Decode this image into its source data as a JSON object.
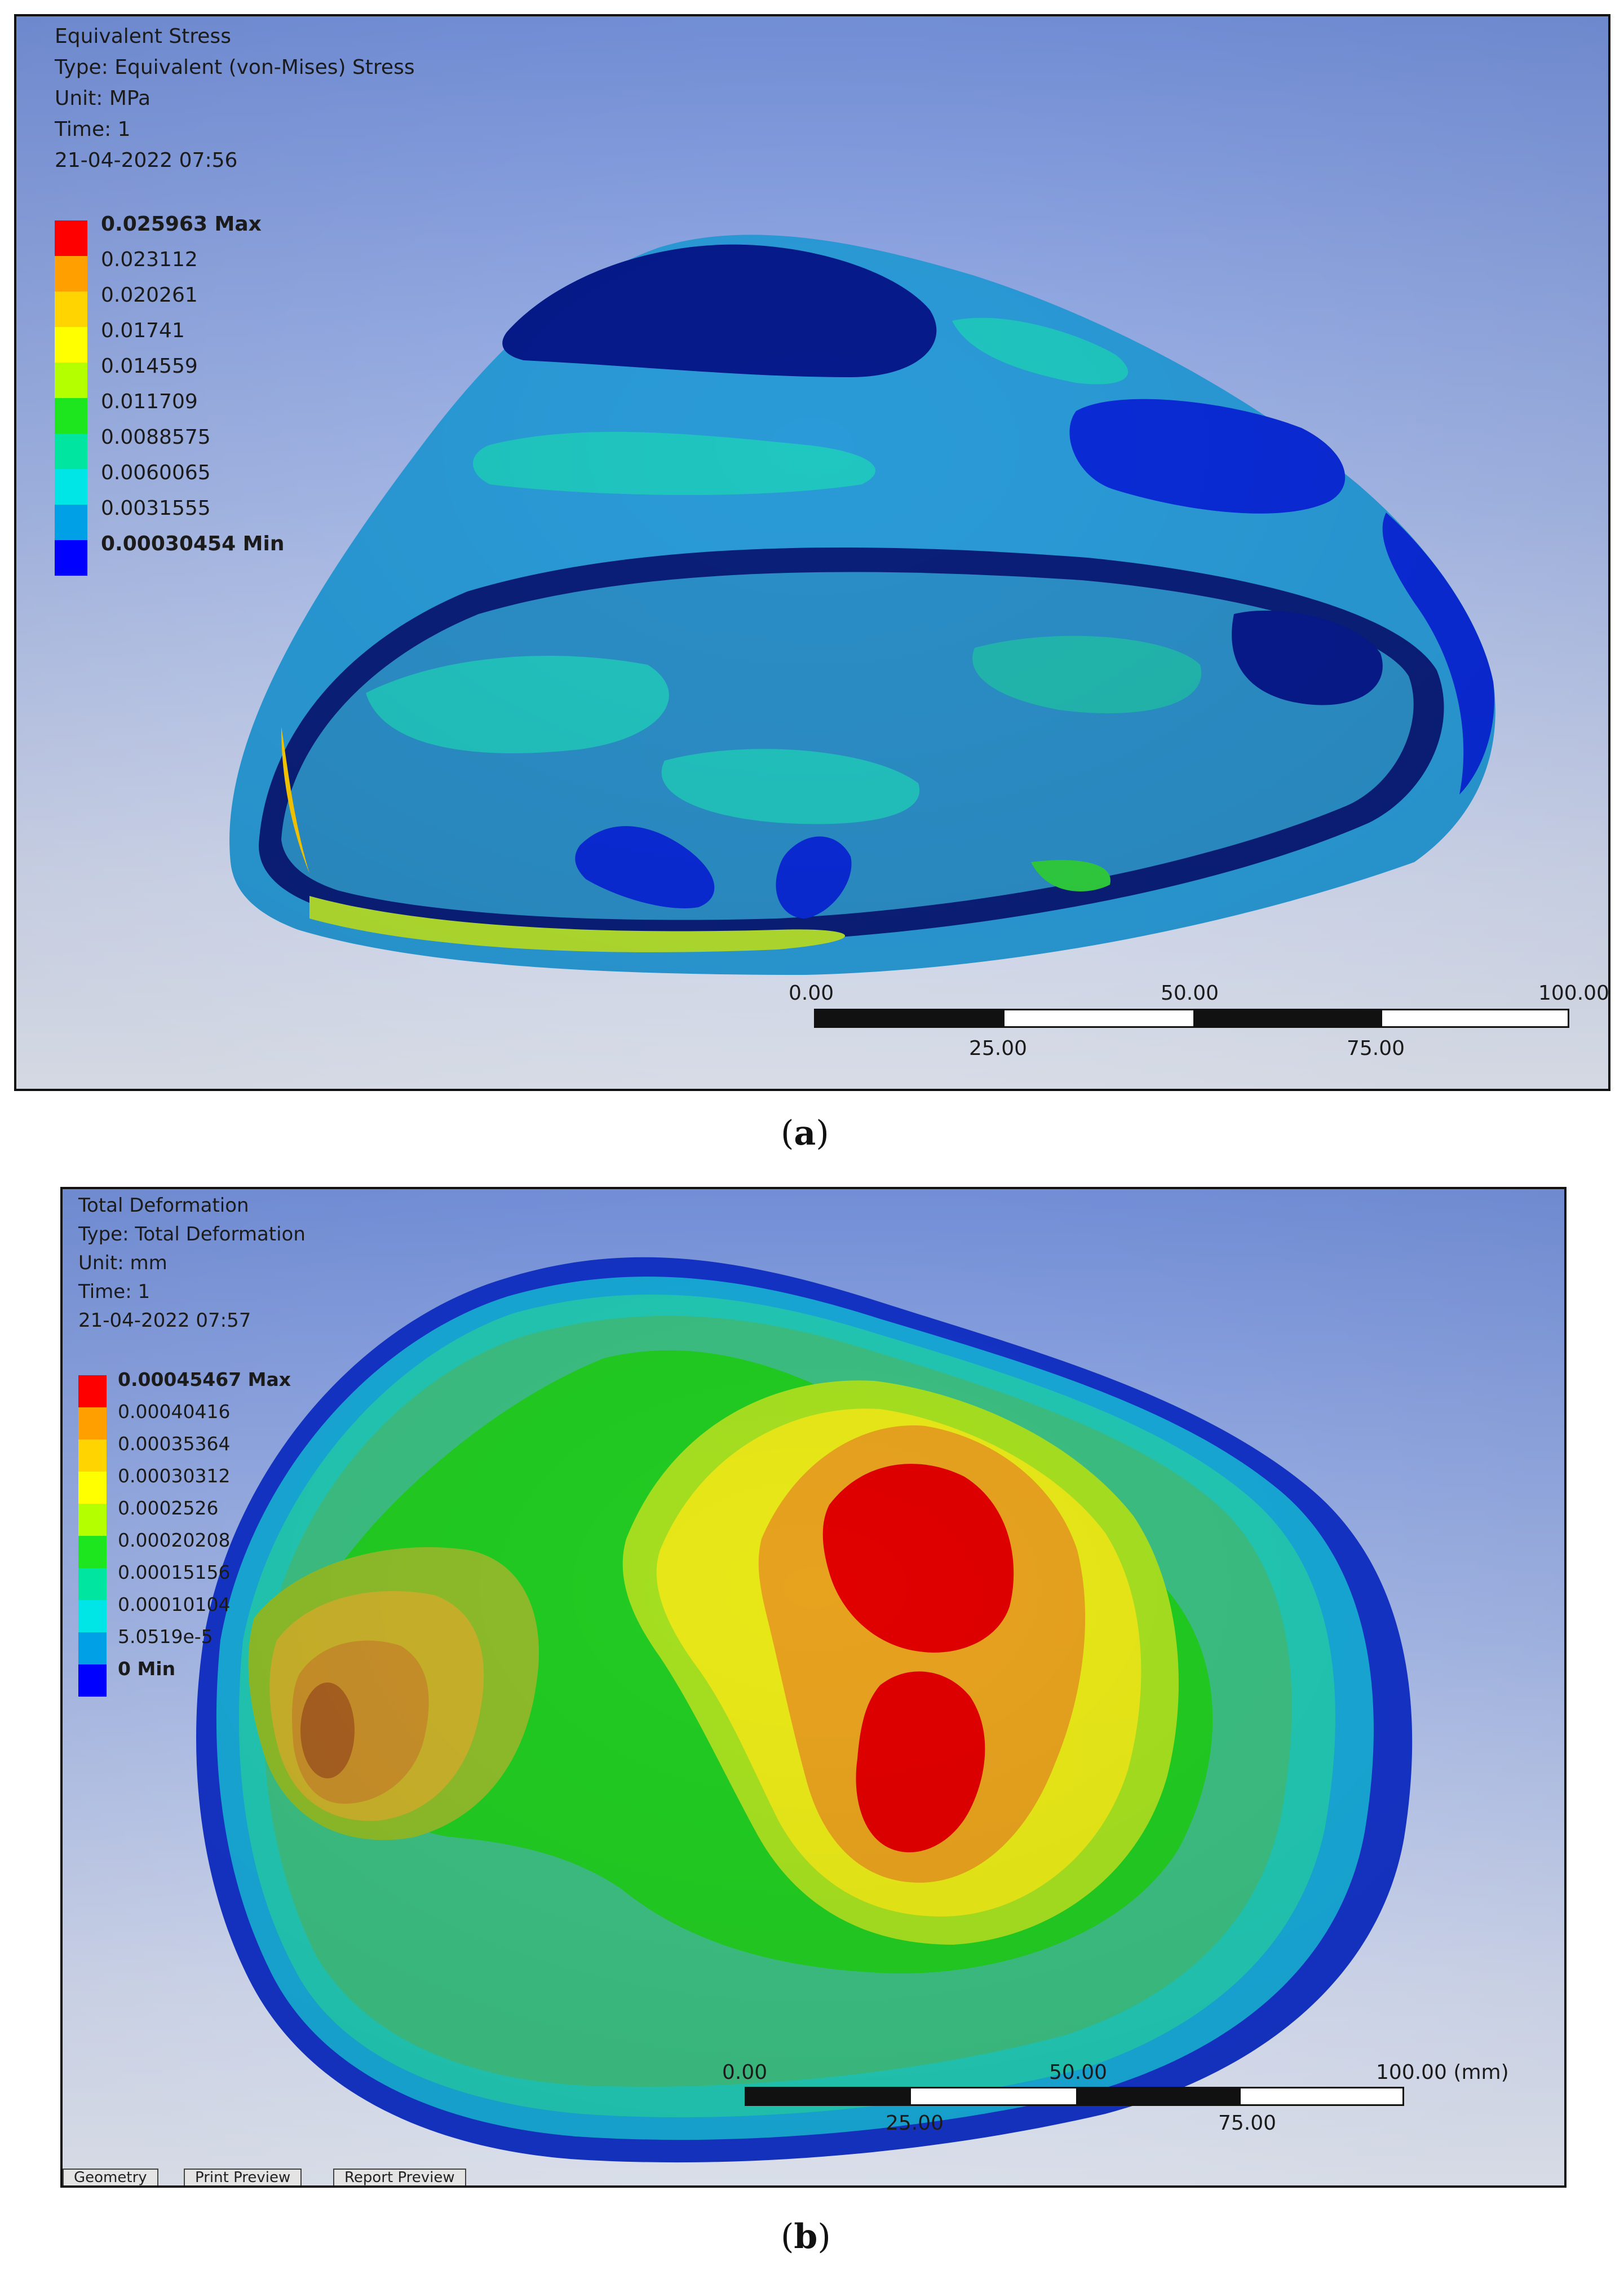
{
  "figure_a": {
    "caption_label": "a",
    "info": {
      "title": "Equivalent Stress",
      "type": "Type: Equivalent (von-Mises) Stress",
      "unit": "Unit: MPa",
      "time": "Time: 1",
      "date": "21-04-2022 07:56"
    },
    "legend": [
      {
        "label": "0.025963 Max",
        "color": "#ff0000"
      },
      {
        "label": "0.023112",
        "color": "#ffa000"
      },
      {
        "label": "0.020261",
        "color": "#ffd400"
      },
      {
        "label": "0.01741",
        "color": "#ffff00"
      },
      {
        "label": "0.014559",
        "color": "#b4ff00"
      },
      {
        "label": "0.011709",
        "color": "#1ee61e"
      },
      {
        "label": "0.0088575",
        "color": "#00e6a0"
      },
      {
        "label": "0.0060065",
        "color": "#00e6e6"
      },
      {
        "label": "0.0031555",
        "color": "#00a0e6"
      },
      {
        "label": "0.00030454 Min",
        "color": "#0000ff"
      }
    ],
    "scale": {
      "top_ticks": [
        "0.00",
        "50.00",
        "100.00"
      ],
      "bottom_ticks": [
        "25.00",
        "75.00"
      ]
    }
  },
  "figure_b": {
    "caption_label": "b",
    "info": {
      "title": "Total Deformation",
      "type": "Type: Total Deformation",
      "unit": "Unit: mm",
      "time": "Time: 1",
      "date": "21-04-2022 07:57"
    },
    "legend": [
      {
        "label": "0.00045467 Max",
        "color": "#ff0000"
      },
      {
        "label": "0.00040416",
        "color": "#ffa000"
      },
      {
        "label": "0.00035364",
        "color": "#ffd400"
      },
      {
        "label": "0.00030312",
        "color": "#ffff00"
      },
      {
        "label": "0.0002526",
        "color": "#b4ff00"
      },
      {
        "label": "0.00020208",
        "color": "#1ee61e"
      },
      {
        "label": "0.00015156",
        "color": "#00e6a0"
      },
      {
        "label": "0.00010104",
        "color": "#00e6e6"
      },
      {
        "label": "5.0519e-5",
        "color": "#00a0e6"
      },
      {
        "label": "0 Min",
        "color": "#0000ff"
      }
    ],
    "scale": {
      "top_ticks": [
        "0.00",
        "50.00",
        "100.00 (mm)"
      ],
      "bottom_ticks": [
        "25.00",
        "75.00"
      ]
    },
    "tabs": [
      "Geometry",
      "Print Preview",
      "Report Preview"
    ]
  }
}
